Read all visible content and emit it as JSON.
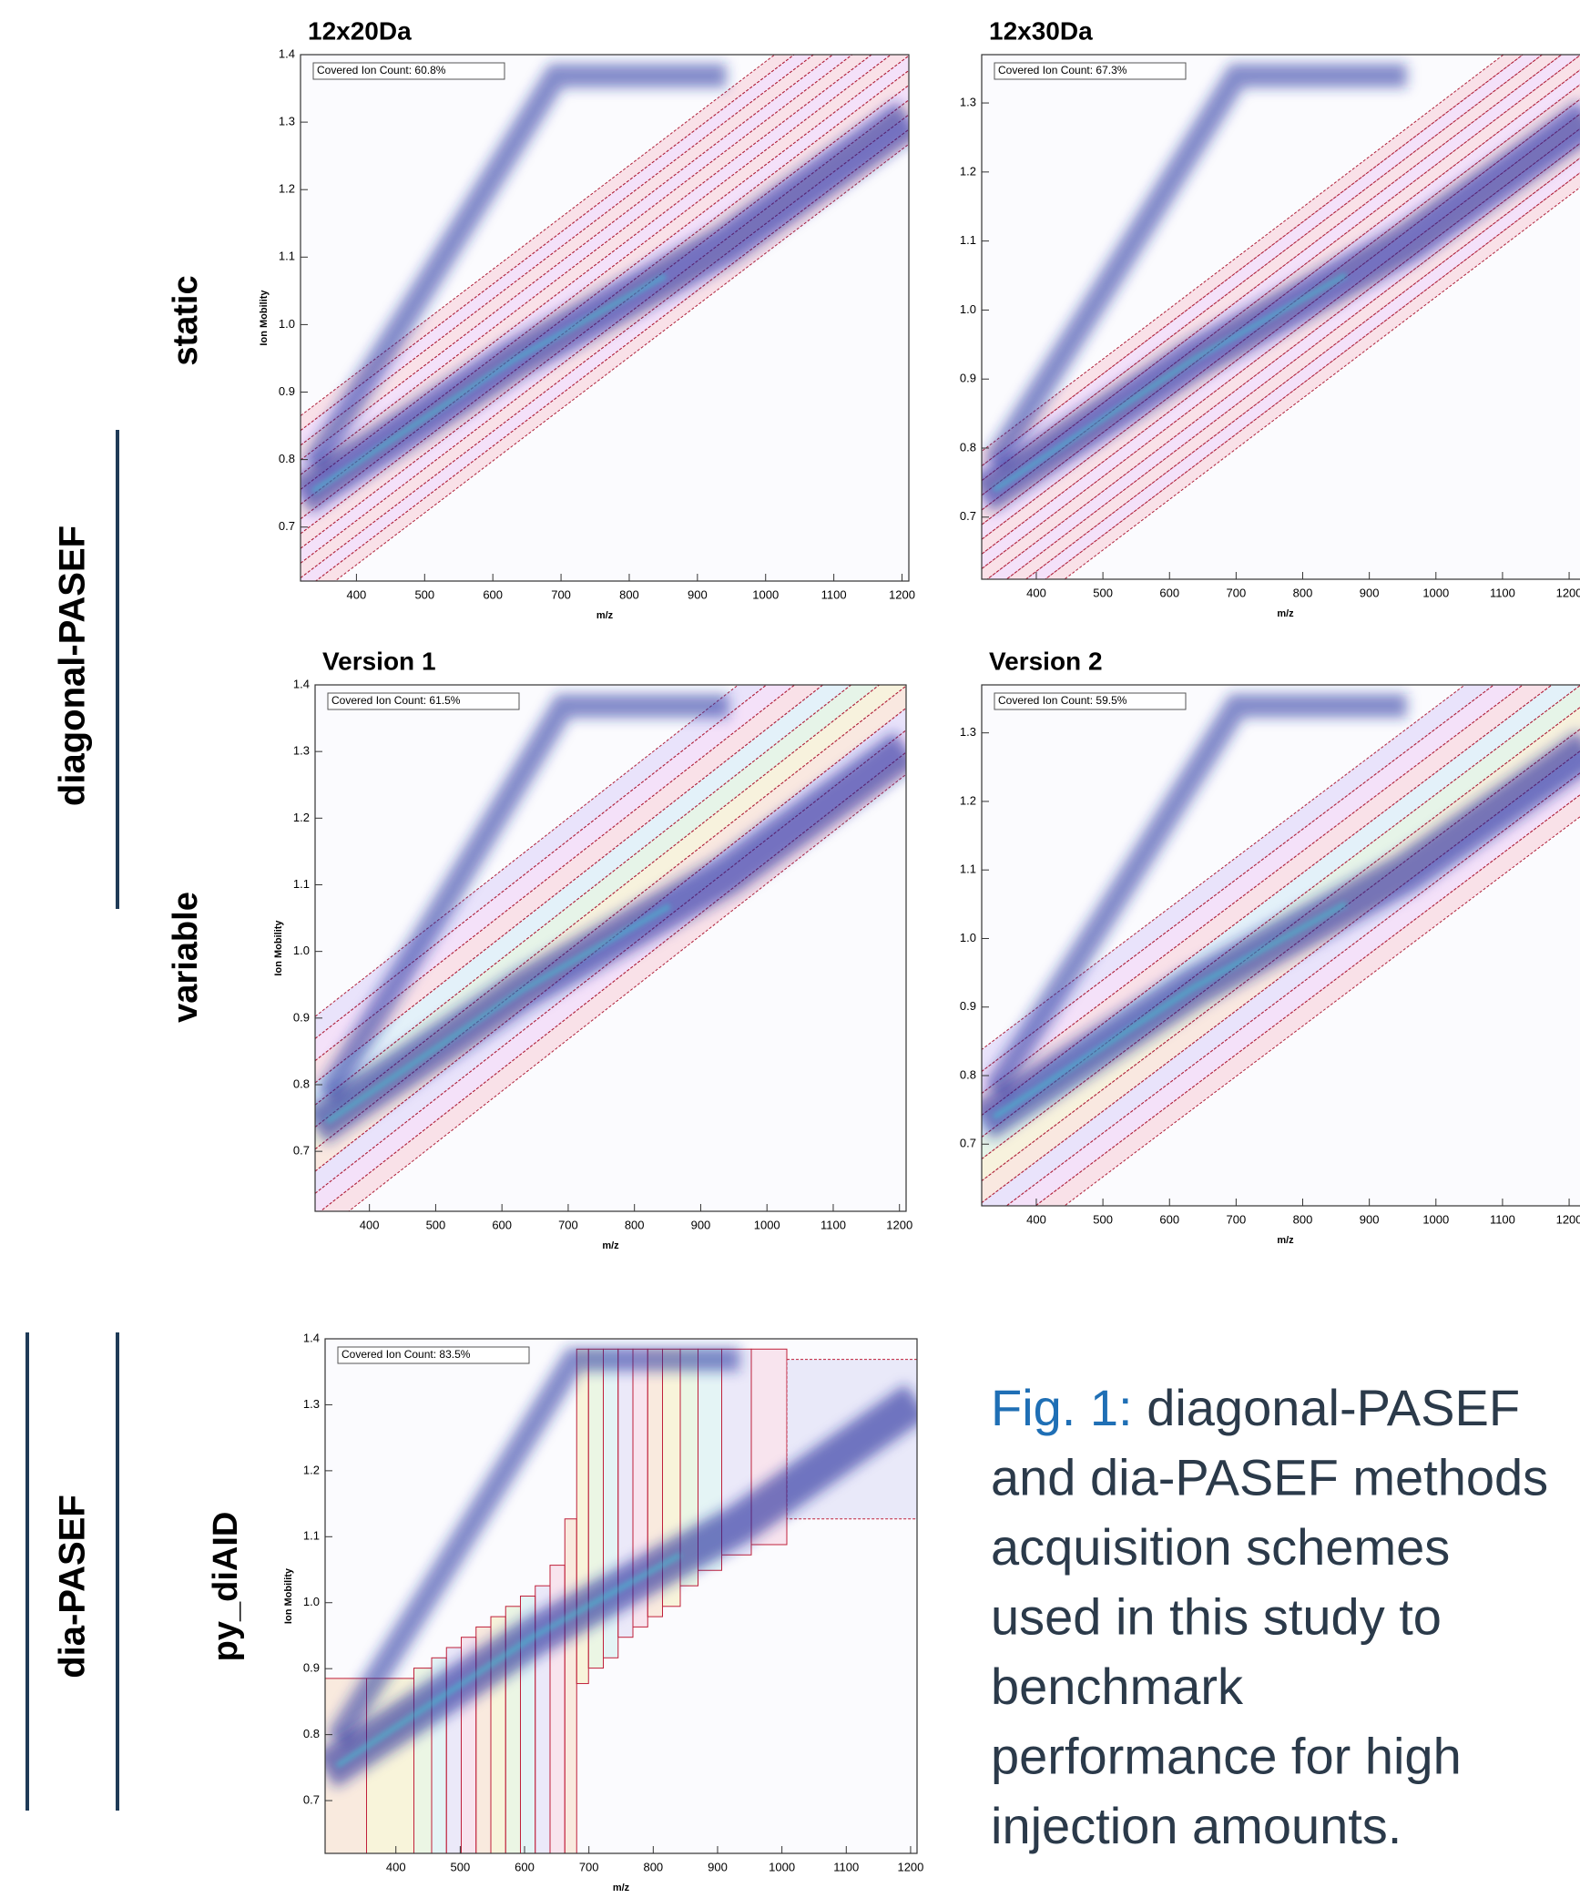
{
  "chart_data": [
    {
      "type": "heatmap",
      "title": "12x20Da",
      "annotation": "Covered Ion Count: 60.8%",
      "xlabel": "m/z",
      "ylabel": "Ion Mobility",
      "xlim": [
        318,
        1210
      ],
      "xticks": [
        400,
        500,
        600,
        700,
        800,
        900,
        1000,
        1100,
        1200
      ],
      "ylim": [
        0.62,
        1.4
      ],
      "yticks": [
        0.7,
        0.8,
        0.9,
        {
          "value": 1,
          "label": "1.0"
        },
        1.1,
        1.2,
        1.3,
        1.4
      ]
    },
    {
      "type": "heatmap",
      "title": "12x30Da",
      "annotation": "Covered Ion Count: 67.3%",
      "xlabel": "m/z",
      "xlim": [
        318,
        1230
      ],
      "xticks": [
        400,
        500,
        600,
        700,
        800,
        900,
        1000,
        1100,
        1200
      ],
      "ylim": [
        0.61,
        1.37
      ],
      "yticks": [
        0.7,
        0.8,
        0.9,
        {
          "value": 1,
          "label": "1.0"
        },
        1.1,
        1.2,
        1.3
      ]
    },
    {
      "type": "heatmap",
      "title": "Version 1",
      "annotation": "Covered Ion Count: 61.5%",
      "xlabel": "m/z",
      "ylabel": "Ion Mobility",
      "xlim": [
        318,
        1210
      ],
      "xticks": [
        400,
        500,
        600,
        700,
        800,
        900,
        1000,
        1100,
        1200
      ],
      "ylim": [
        0.61,
        1.4
      ],
      "yticks": [
        0.7,
        0.8,
        0.9,
        {
          "value": 1,
          "label": "1.0"
        },
        1.1,
        1.2,
        1.3,
        1.4
      ]
    },
    {
      "type": "heatmap",
      "title": "Version 2",
      "annotation": "Covered Ion Count: 59.5%",
      "xlabel": "m/z",
      "xlim": [
        318,
        1230
      ],
      "xticks": [
        400,
        500,
        600,
        700,
        800,
        900,
        1000,
        1100,
        1200
      ],
      "ylim": [
        0.61,
        1.37
      ],
      "yticks": [
        0.7,
        0.8,
        0.9,
        {
          "value": 1,
          "label": "1.0"
        },
        1.1,
        1.2,
        1.3
      ]
    },
    {
      "type": "heatmap",
      "annotation": "Covered Ion Count: 83.5%",
      "xlabel": "m/z",
      "ylabel": "Ion Mobility",
      "xlim": [
        290,
        1210
      ],
      "xticks": [
        400,
        500,
        600,
        700,
        800,
        900,
        1000,
        1100,
        1200
      ],
      "ylim": [
        0.62,
        1.4
      ],
      "yticks": [
        0.7,
        0.8,
        0.9,
        {
          "value": 1,
          "label": "1.0"
        },
        1.1,
        1.2,
        1.3,
        1.4
      ]
    }
  ],
  "row_labels": [
    "static",
    "variable",
    "py_diAID"
  ],
  "group_labels": [
    "diagonal-PASEF",
    "dia-PASEF"
  ],
  "caption": {
    "label": "Fig. 1:",
    "lines": [
      "diagonal-PASEF",
      "and dia-PASEF methods",
      "acquisition schemes",
      "used in this study to",
      "benchmark",
      "performance for high",
      "injection amounts."
    ]
  }
}
